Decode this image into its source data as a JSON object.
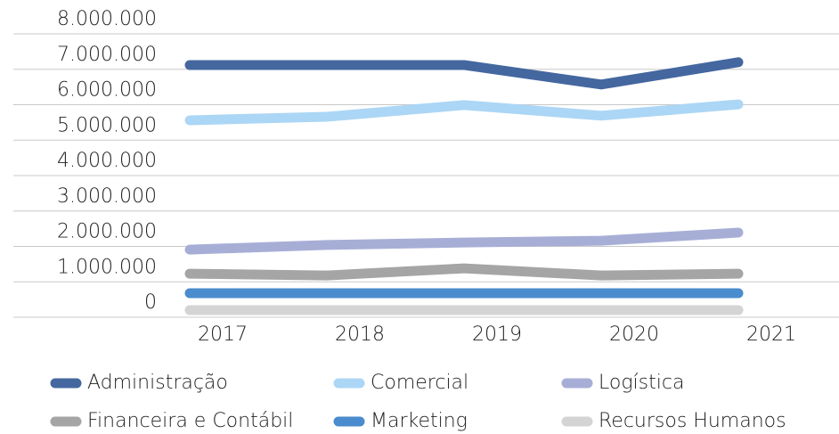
{
  "chart_data": {
    "type": "line",
    "categories": [
      "2017",
      "2018",
      "2019",
      "2020",
      "2021"
    ],
    "series": [
      {
        "name": "Administração",
        "color": "#44679f",
        "values": [
          7120000,
          7120000,
          7120000,
          6570000,
          7200000
        ]
      },
      {
        "name": "Comercial",
        "color": "#acd6f5",
        "values": [
          5560000,
          5660000,
          5990000,
          5690000,
          6010000
        ]
      },
      {
        "name": "Logística",
        "color": "#a7aed6",
        "values": [
          1910000,
          2040000,
          2110000,
          2160000,
          2390000
        ]
      },
      {
        "name": "Financeira e Contábil",
        "color": "#a5a5a5",
        "values": [
          1230000,
          1180000,
          1380000,
          1180000,
          1230000
        ]
      },
      {
        "name": "Marketing",
        "color": "#4a8ccd",
        "values": [
          680000,
          680000,
          680000,
          680000,
          680000
        ]
      },
      {
        "name": "Recursos Humanos",
        "color": "#d4d4d4",
        "values": [
          200000,
          200000,
          200000,
          200000,
          200000
        ]
      }
    ],
    "ylim": [
      0,
      8000000
    ],
    "yticks": [
      0,
      {
        "value": 1000000,
        "label": "1.000.000"
      },
      {
        "value": 2000000,
        "label": "2.000.000"
      },
      {
        "value": 3000000,
        "label": "3.000.000"
      },
      {
        "value": 4000000,
        "label": "4.000.000"
      },
      {
        "value": 5000000,
        "label": "5.000.000"
      },
      {
        "value": 6000000,
        "label": "6.000.000"
      },
      {
        "value": 7000000,
        "label": "7.000.000"
      },
      {
        "value": 8000000,
        "label": "8.000.000"
      }
    ],
    "grid": true,
    "legend": "bottom"
  }
}
